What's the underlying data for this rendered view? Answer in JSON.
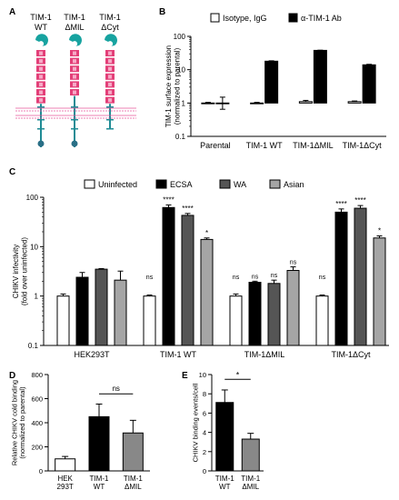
{
  "panel_letters": [
    "A",
    "B",
    "C",
    "D",
    "E"
  ],
  "colors": {
    "ig_domain": "#17a3a0",
    "mucin": "#e33f78",
    "stalk": "#1f8c95",
    "cyto_dot": "#2a6f86",
    "membrane": "#e6569a",
    "black_bar": "#000000",
    "dark_gray_bar": "#555555",
    "light_gray_bar": "#a5a5a5",
    "white_bar": "#ffffff"
  },
  "panel_a": {
    "constructs": [
      {
        "line1": "TIM-1",
        "line2": "WT",
        "mucin_blocks": 7,
        "has_cyt": true
      },
      {
        "line1": "TIM-1",
        "line2": "ΔMIL",
        "mucin_blocks": 6,
        "has_cyt": true
      },
      {
        "line1": "TIM-1",
        "line2": "ΔCyt",
        "mucin_blocks": 7,
        "has_cyt": false
      }
    ]
  },
  "chart_data": [
    {
      "panel": "B",
      "type": "bar",
      "ylabel": "TIM-1 surface expression\n(normalized to parental)",
      "yscale": "log",
      "ylim": [
        0.1,
        100
      ],
      "yticks": [
        "0.1",
        "1",
        "10",
        "100"
      ],
      "categories": [
        "Parental",
        "TIM-1 WT",
        "TIM-1ΔMIL",
        "TIM-1ΔCyt"
      ],
      "legend_placement": "top",
      "series": [
        {
          "name": "Isotype, IgG",
          "color": "#ffffff",
          "values": [
            1,
            1,
            1.1,
            1.1
          ],
          "errors": [
            0.05,
            0.05,
            0.1,
            0.05
          ]
        },
        {
          "name": "α-TIM-1 Ab",
          "color": "#000000",
          "values": [
            1,
            18,
            38,
            14
          ],
          "errors": [
            0.5,
            0.5,
            0.5,
            0.5
          ]
        }
      ]
    },
    {
      "panel": "C",
      "type": "bar",
      "ylabel": "CHIKV infectivity\n(fold over uninfected)",
      "yscale": "log",
      "ylim": [
        0.1,
        100
      ],
      "yticks": [
        "0.1",
        "1",
        "10",
        "100"
      ],
      "categories": [
        "HEK293T",
        "TIM-1 WT",
        "TIM-1ΔMIL",
        "TIM-1ΔCyt"
      ],
      "legend_placement": "top",
      "series": [
        {
          "name": "Uninfected",
          "color": "#ffffff",
          "values": [
            1,
            1,
            1,
            1
          ],
          "errors": [
            0.1,
            0.05,
            0.1,
            0.05
          ]
        },
        {
          "name": "ECSA",
          "color": "#000000",
          "values": [
            2.4,
            62,
            1.9,
            50
          ],
          "errors": [
            0.6,
            8,
            0.1,
            8
          ]
        },
        {
          "name": "WA",
          "color": "#555555",
          "values": [
            3.5,
            43,
            1.8,
            60
          ],
          "errors": [
            0.1,
            4,
            0.3,
            8
          ]
        },
        {
          "name": "Asian",
          "color": "#a5a5a5",
          "values": [
            2.1,
            14,
            3.3,
            15
          ],
          "errors": [
            1.1,
            1,
            0.6,
            1.5
          ]
        }
      ],
      "annotations": [
        [
          "",
          "",
          "",
          ""
        ],
        [
          "ns",
          "****",
          "****",
          "*"
        ],
        [
          "ns",
          "ns",
          "ns",
          "ns"
        ],
        [
          "ns",
          "****",
          "****",
          "*"
        ]
      ]
    },
    {
      "panel": "D",
      "type": "bar",
      "ylabel": "Relative CHIKV cold binding\n(normalized to parental)",
      "ylim": [
        0,
        800
      ],
      "yticks": [
        "0",
        "200",
        "400",
        "600",
        "800"
      ],
      "categories": [
        "HEK\n293T",
        "TIM-1\nWT",
        "TIM-1\nΔMIL"
      ],
      "values": [
        100,
        450,
        315
      ],
      "errors": [
        20,
        105,
        105
      ],
      "colors": [
        "#ffffff",
        "#000000",
        "#888888"
      ],
      "comparison": {
        "from": 1,
        "to": 2,
        "label": "ns"
      }
    },
    {
      "panel": "E",
      "type": "bar",
      "ylabel": "CHIKV binding events/cell",
      "ylim": [
        0,
        10
      ],
      "yticks": [
        "0",
        "2",
        "4",
        "6",
        "8",
        "10"
      ],
      "categories": [
        "TIM-1\nWT",
        "TIM-1\nΔMIL"
      ],
      "values": [
        7.1,
        3.3
      ],
      "errors": [
        1.3,
        0.6
      ],
      "colors": [
        "#000000",
        "#888888"
      ],
      "comparison": {
        "from": 0,
        "to": 1,
        "label": "*"
      }
    }
  ]
}
